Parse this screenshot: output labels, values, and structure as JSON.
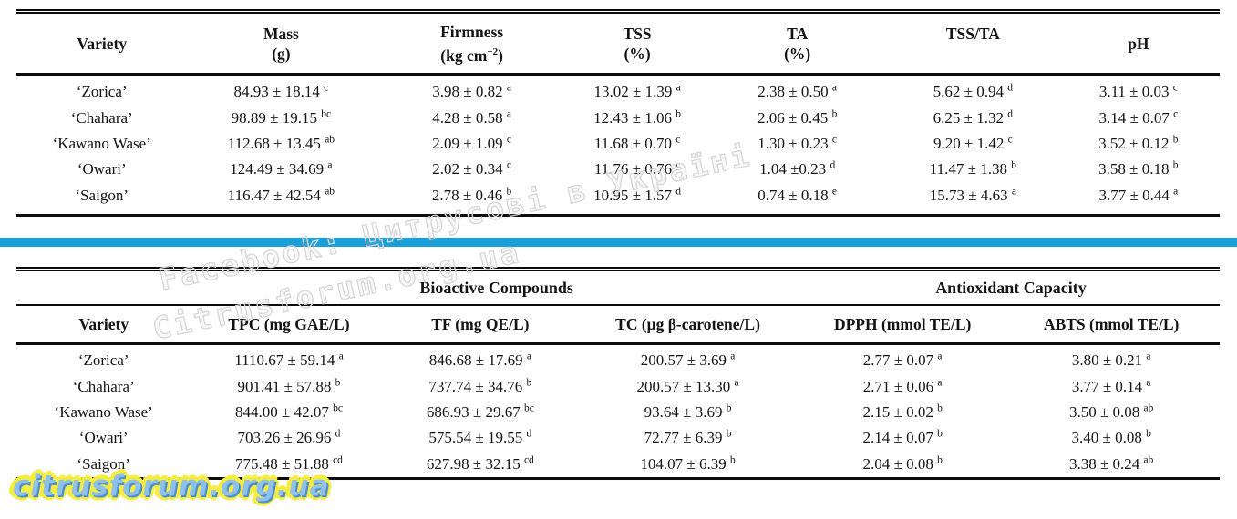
{
  "divider": {
    "color": "#1b9fd8"
  },
  "watermark": {
    "diagonal_line1": "Facebook: Цитрусові в Україні",
    "diagonal_line2": "Citrusforum.org.ua",
    "logo": "citrusforum.org.ua"
  },
  "table1": {
    "headers": [
      {
        "label": "Variety",
        "unit": ""
      },
      {
        "label": "Mass",
        "unit": "(g)"
      },
      {
        "label": "Firmness",
        "unit_pre": "(kg cm",
        "unit_sup": "−2",
        "unit_post": ")"
      },
      {
        "label": "TSS",
        "unit": "(%)"
      },
      {
        "label": "TA",
        "unit": "(%)"
      },
      {
        "label": "TSS/TA",
        "unit": " "
      },
      {
        "label": "pH",
        "unit": ""
      }
    ],
    "rows": [
      {
        "variety": "‘Zorica’",
        "cells": [
          {
            "v": "84.93 ± 18.14",
            "s": "c"
          },
          {
            "v": "3.98 ± 0.82",
            "s": "a"
          },
          {
            "v": "13.02 ± 1.39",
            "s": "a"
          },
          {
            "v": "2.38 ± 0.50",
            "s": "a"
          },
          {
            "v": "5.62 ± 0.94",
            "s": "d"
          },
          {
            "v": "3.11 ± 0.03",
            "s": "c"
          }
        ]
      },
      {
        "variety": "‘Chahara’",
        "cells": [
          {
            "v": "98.89 ± 19.15",
            "s": "bc"
          },
          {
            "v": "4.28 ± 0.58",
            "s": "a"
          },
          {
            "v": "12.43 ± 1.06",
            "s": "b"
          },
          {
            "v": "2.06 ± 0.45",
            "s": "b"
          },
          {
            "v": "6.25 ± 1.32",
            "s": "d"
          },
          {
            "v": "3.14 ± 0.07",
            "s": "c"
          }
        ]
      },
      {
        "variety": "‘Kawano Wase’",
        "cells": [
          {
            "v": "112.68 ± 13.45",
            "s": "ab"
          },
          {
            "v": "2.09 ± 1.09",
            "s": "c"
          },
          {
            "v": "11.68 ± 0.70",
            "s": "c"
          },
          {
            "v": "1.30 ± 0.23",
            "s": "c"
          },
          {
            "v": "9.20 ± 1.42",
            "s": "c"
          },
          {
            "v": "3.52 ± 0.12",
            "s": "b"
          }
        ]
      },
      {
        "variety": "‘Owari’",
        "cells": [
          {
            "v": "124.49 ± 34.69",
            "s": "a"
          },
          {
            "v": "2.02 ± 0.34",
            "s": "c"
          },
          {
            "v": "11.76 ± 0.76",
            "s": "c"
          },
          {
            "v": "1.04 ±0.23",
            "s": "d"
          },
          {
            "v": "11.47 ± 1.38",
            "s": "b"
          },
          {
            "v": "3.58 ± 0.18",
            "s": "b"
          }
        ]
      },
      {
        "variety": "‘Saigon’",
        "cells": [
          {
            "v": "116.47 ± 42.54",
            "s": "ab"
          },
          {
            "v": "2.78 ± 0.46",
            "s": "b"
          },
          {
            "v": "10.95 ± 1.57",
            "s": "d"
          },
          {
            "v": "0.74 ± 0.18",
            "s": "e"
          },
          {
            "v": "15.73 ± 4.63",
            "s": "a"
          },
          {
            "v": "3.77 ± 0.44",
            "s": "a"
          }
        ]
      }
    ]
  },
  "table2": {
    "group_headers": [
      {
        "label": "",
        "span": 1
      },
      {
        "label": "Bioactive Compounds",
        "span": 3
      },
      {
        "label": "Antioxidant Capacity",
        "span": 2
      }
    ],
    "headers": [
      "Variety",
      "TPC (mg GAE/L)",
      "TF (mg QE/L)",
      "TC (μg β-carotene/L)",
      "DPPH (mmol TE/L)",
      "ABTS (mmol TE/L)"
    ],
    "rows": [
      {
        "variety": "‘Zorica’",
        "cells": [
          {
            "v": "1110.67 ± 59.14",
            "s": "a"
          },
          {
            "v": "846.68 ± 17.69",
            "s": "a"
          },
          {
            "v": "200.57 ± 3.69",
            "s": "a"
          },
          {
            "v": "2.77 ± 0.07",
            "s": "a"
          },
          {
            "v": "3.80 ± 0.21",
            "s": "a"
          }
        ]
      },
      {
        "variety": "‘Chahara’",
        "cells": [
          {
            "v": "901.41 ± 57.88",
            "s": "b"
          },
          {
            "v": "737.74 ± 34.76",
            "s": "b"
          },
          {
            "v": "200.57 ± 13.30",
            "s": "a"
          },
          {
            "v": "2.71 ± 0.06",
            "s": "a"
          },
          {
            "v": "3.77 ± 0.14",
            "s": "a"
          }
        ]
      },
      {
        "variety": "‘Kawano Wase’",
        "cells": [
          {
            "v": "844.00 ± 42.07",
            "s": "bc"
          },
          {
            "v": "686.93 ± 29.67",
            "s": "bc"
          },
          {
            "v": "93.64 ± 3.69",
            "s": "b"
          },
          {
            "v": "2.15 ± 0.02",
            "s": "b"
          },
          {
            "v": "3.50 ± 0.08",
            "s": "ab"
          }
        ]
      },
      {
        "variety": "‘Owari’",
        "cells": [
          {
            "v": "703.26 ± 26.96",
            "s": "d"
          },
          {
            "v": "575.54 ± 19.55",
            "s": "d"
          },
          {
            "v": "72.77 ± 6.39",
            "s": "b"
          },
          {
            "v": "2.14 ± 0.07",
            "s": "b"
          },
          {
            "v": "3.40 ± 0.08",
            "s": "b"
          }
        ]
      },
      {
        "variety": "‘Saigon’",
        "cells": [
          {
            "v": "775.48 ± 51.88",
            "s": "cd"
          },
          {
            "v": "627.98 ± 32.15",
            "s": "cd"
          },
          {
            "v": "104.07 ± 6.39",
            "s": "b"
          },
          {
            "v": "2.04 ± 0.08",
            "s": "b"
          },
          {
            "v": "3.38 ± 0.24",
            "s": "ab"
          }
        ]
      }
    ]
  }
}
